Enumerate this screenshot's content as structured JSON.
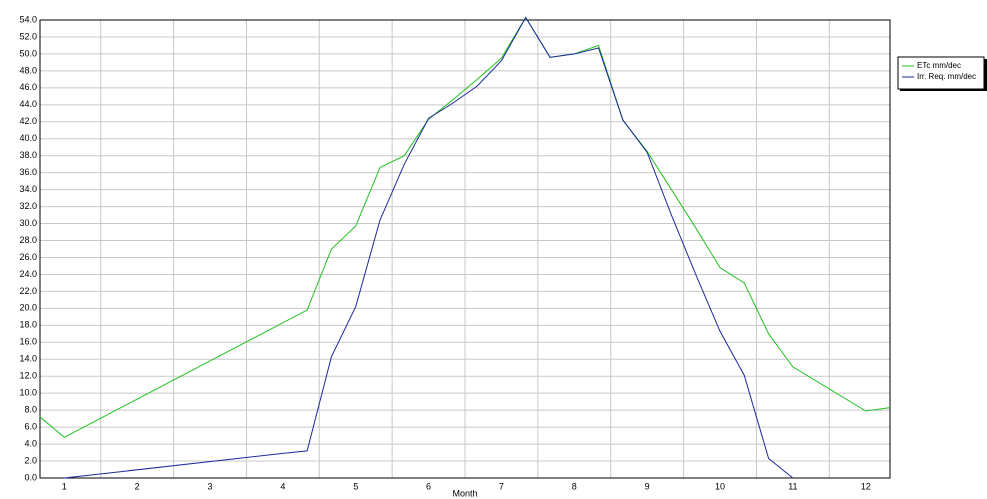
{
  "chart_data": {
    "type": "line",
    "xlabel": "Month",
    "xlim": [
      0.667,
      12.333
    ],
    "xticks": [
      1,
      2,
      3,
      4,
      5,
      6,
      7,
      8,
      9,
      10,
      11,
      12
    ],
    "ylim": [
      0,
      54
    ],
    "yticks": [
      {
        "value": 0,
        "label": "0.0"
      },
      {
        "value": 2,
        "label": "2.0"
      },
      {
        "value": 4,
        "label": "4.0"
      },
      {
        "value": 6,
        "label": "6.0"
      },
      {
        "value": 8,
        "label": "8.0"
      },
      {
        "value": 10,
        "label": "10.0"
      },
      {
        "value": 12,
        "label": "12.0"
      },
      {
        "value": 14,
        "label": "14.0"
      },
      {
        "value": 16,
        "label": "16.0"
      },
      {
        "value": 18,
        "label": "18.0"
      },
      {
        "value": 20,
        "label": "20.0"
      },
      {
        "value": 22,
        "label": "22.0"
      },
      {
        "value": 24,
        "label": "24.0"
      },
      {
        "value": 26,
        "label": "26.0"
      },
      {
        "value": 28,
        "label": "28.0"
      },
      {
        "value": 30,
        "label": "30.0"
      },
      {
        "value": 32,
        "label": "32.0"
      },
      {
        "value": 34,
        "label": "34.0"
      },
      {
        "value": 36,
        "label": "36.0"
      },
      {
        "value": 38,
        "label": "38.0"
      },
      {
        "value": 40,
        "label": "40.0"
      },
      {
        "value": 42,
        "label": "42.0"
      },
      {
        "value": 44,
        "label": "44.0"
      },
      {
        "value": 46,
        "label": "46.0"
      },
      {
        "value": 48,
        "label": "48.0"
      },
      {
        "value": 50,
        "label": "50.0"
      },
      {
        "value": 52,
        "label": "52.0"
      },
      {
        "value": 54,
        "label": "54.0"
      }
    ],
    "grid": true,
    "legend": "right",
    "series": [
      {
        "name": "ETc  mm/dec",
        "color": "#22c022",
        "x": [
          0.667,
          1,
          4.333,
          4.667,
          5,
          5.333,
          5.667,
          6,
          6.333,
          6.667,
          7,
          7.333,
          7.667,
          8,
          8.333,
          8.667,
          9,
          9.667,
          10,
          10.333,
          10.667,
          11,
          12,
          12.333
        ],
        "values": [
          7.2,
          4.8,
          19.8,
          27.0,
          29.7,
          36.6,
          38.0,
          42.3,
          44.6,
          47.0,
          49.5,
          54.3,
          49.6,
          50.0,
          51.0,
          42.2,
          38.5,
          29.5,
          24.8,
          23.0,
          17.0,
          13.1,
          7.9,
          8.3
        ]
      },
      {
        "name": "Irr. Req.  mm/dec",
        "color": "#1c2a9c",
        "x": [
          1,
          4,
          4.333,
          4.667,
          5,
          5.333,
          5.667,
          6,
          6.333,
          6.667,
          7,
          7.333,
          7.667,
          8,
          8.333,
          8.667,
          9,
          9.333,
          9.667,
          10,
          10.333,
          10.667,
          11
        ],
        "values": [
          0,
          2.9,
          3.2,
          14.3,
          20.2,
          30.4,
          37.0,
          42.4,
          44.2,
          46.2,
          49.2,
          54.3,
          49.6,
          50.0,
          50.7,
          42.2,
          38.4,
          31.0,
          24.0,
          17.3,
          12.1,
          2.3,
          0
        ]
      }
    ]
  }
}
